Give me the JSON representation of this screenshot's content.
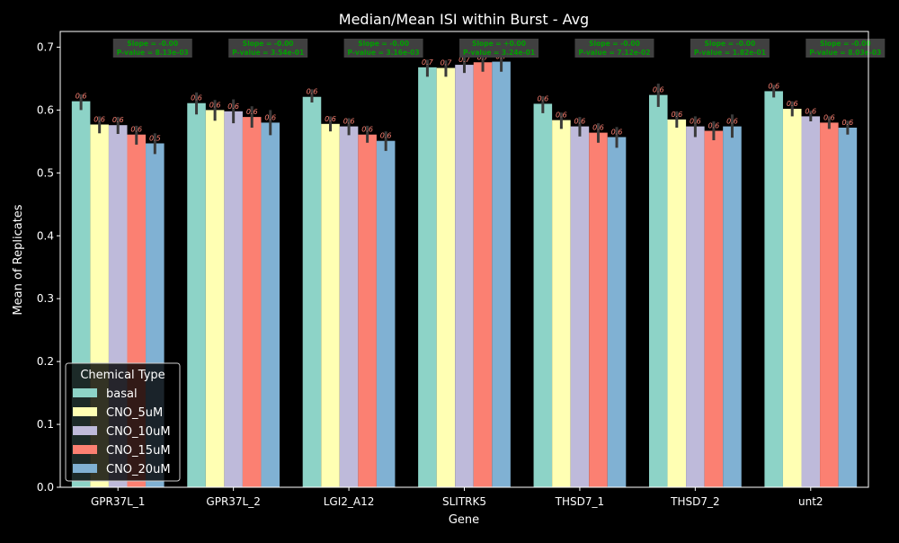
{
  "chart_data": {
    "type": "bar",
    "title": "Median/Mean ISI within Burst - Avg",
    "xlabel": "Gene",
    "ylabel": "Mean of Replicates",
    "ylim": [
      0,
      0.725
    ],
    "yticks": [
      0.0,
      0.1,
      0.2,
      0.3,
      0.4,
      0.5,
      0.6,
      0.7
    ],
    "ytick_labels": [
      "0.0",
      "0.1",
      "0.2",
      "0.3",
      "0.4",
      "0.5",
      "0.6",
      "0.7"
    ],
    "grid": false,
    "legend_position": "lower-left",
    "legend_title": "Chemical Type",
    "categories": [
      "GPR37L_1",
      "GPR37L_2",
      "LGI2_A12",
      "SLITRK5",
      "THSD7_1",
      "THSD7_2",
      "unt2"
    ],
    "series": [
      {
        "name": "basal",
        "color": "#8dd3c7",
        "values": [
          0.614,
          0.611,
          0.621,
          0.668,
          0.61,
          0.624,
          0.63
        ],
        "err_low": [
          0.6,
          0.593,
          0.612,
          0.653,
          0.595,
          0.605,
          0.62
        ],
        "err_high": [
          0.625,
          0.628,
          0.633,
          0.68,
          0.622,
          0.642,
          0.64
        ],
        "labels": [
          "0.6",
          "0.6",
          "0.6",
          "0.7",
          "0.6",
          "0.6",
          "0.6"
        ]
      },
      {
        "name": "CNO_5uM",
        "color": "#ffffb3",
        "values": [
          0.577,
          0.6,
          0.578,
          0.667,
          0.584,
          0.585,
          0.602
        ],
        "err_low": [
          0.563,
          0.583,
          0.566,
          0.653,
          0.57,
          0.572,
          0.59
        ],
        "err_high": [
          0.59,
          0.616,
          0.59,
          0.679,
          0.596,
          0.598,
          0.614
        ],
        "labels": [
          "0.6",
          "0.6",
          "0.6",
          "0.7",
          "0.6",
          "0.6",
          "0.6"
        ]
      },
      {
        "name": "CNO_10uM",
        "color": "#bebada",
        "values": [
          0.576,
          0.598,
          0.574,
          0.672,
          0.574,
          0.574,
          0.59
        ],
        "err_low": [
          0.562,
          0.579,
          0.56,
          0.659,
          0.558,
          0.557,
          0.582
        ],
        "err_high": [
          0.589,
          0.617,
          0.587,
          0.685,
          0.589,
          0.59,
          0.599
        ],
        "labels": [
          "0.6",
          "0.6",
          "0.6",
          "0.7",
          "0.6",
          "0.6",
          "0.6"
        ]
      },
      {
        "name": "CNO_15uM",
        "color": "#fb8072",
        "values": [
          0.561,
          0.589,
          0.561,
          0.676,
          0.564,
          0.567,
          0.58
        ],
        "err_low": [
          0.545,
          0.572,
          0.548,
          0.661,
          0.548,
          0.552,
          0.57
        ],
        "err_high": [
          0.575,
          0.606,
          0.575,
          0.691,
          0.579,
          0.582,
          0.59
        ],
        "labels": [
          "0.6",
          "0.6",
          "0.6",
          "0.7",
          "0.6",
          "0.6",
          "0.6"
        ]
      },
      {
        "name": "CNO_20uM",
        "color": "#80b1d3",
        "values": [
          0.547,
          0.58,
          0.551,
          0.677,
          0.557,
          0.574,
          0.572
        ],
        "err_low": [
          0.53,
          0.56,
          0.535,
          0.661,
          0.54,
          0.556,
          0.561
        ],
        "err_high": [
          0.563,
          0.6,
          0.566,
          0.692,
          0.573,
          0.593,
          0.583
        ],
        "labels": [
          "0.5",
          "0.6",
          "0.6",
          "0.7",
          "0.6",
          "0.6",
          "0.6"
        ]
      }
    ],
    "annotations": [
      {
        "category": "GPR37L_1",
        "line1": "Slope = -0.00",
        "line2": "P-value = 8.13e-03"
      },
      {
        "category": "GPR37L_2",
        "line1": "Slope = -0.00",
        "line2": "P-value = 3.54e-01"
      },
      {
        "category": "LGI2_A12",
        "line1": "Slope = -0.00",
        "line2": "P-value = 3.16e-03"
      },
      {
        "category": "SLITRK5",
        "line1": "Slope = +0.00",
        "line2": "P-value = 3.24e-01"
      },
      {
        "category": "THSD7_1",
        "line1": "Slope = -0.00",
        "line2": "P-value = 7.12e-02"
      },
      {
        "category": "THSD7_2",
        "line1": "Slope = -0.00",
        "line2": "P-value = 1.82e-01"
      },
      {
        "category": "unt2",
        "line1": "Slope = -0.00",
        "line2": "P-value = 8.03e-03"
      }
    ],
    "colors": {
      "background": "#000000",
      "axes_face": "#000000",
      "axes_edge": "#ffffff",
      "text": "#ffffff",
      "errorbar": "#3a3a3a",
      "bar_label": "#fb8072",
      "annotation_box": "#404040",
      "annotation_text": "#00a000"
    }
  }
}
